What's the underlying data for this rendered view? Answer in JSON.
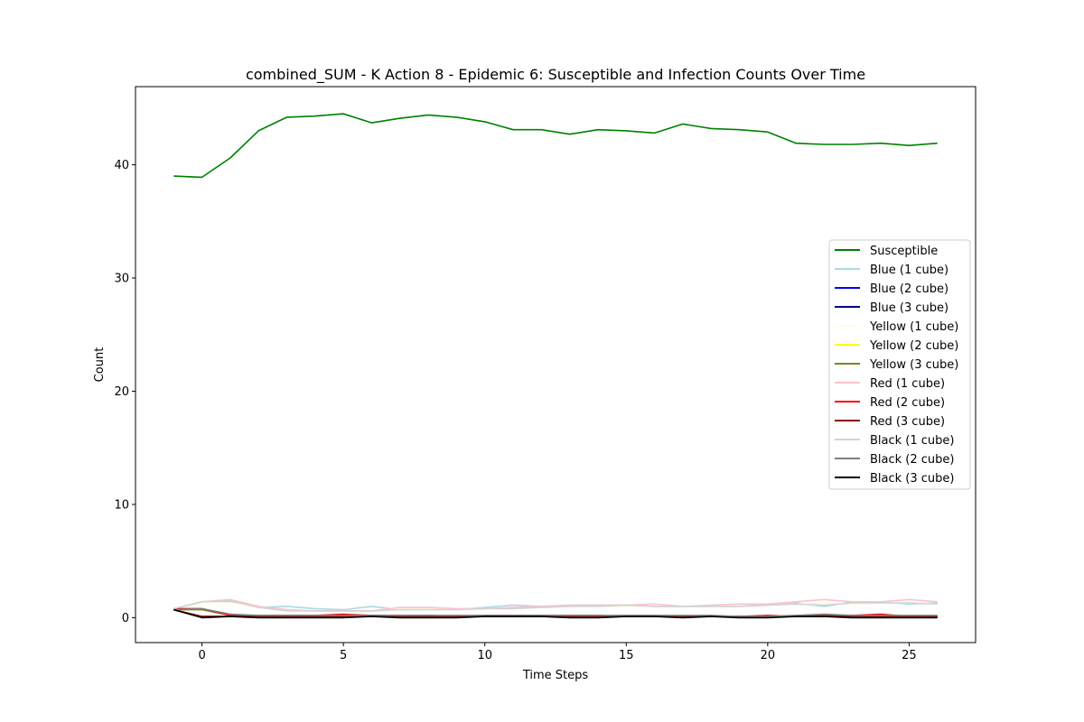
{
  "chart_data": {
    "type": "line",
    "title": "combined_SUM - K Action 8 - Epidemic 6: Susceptible and Infection Counts Over Time",
    "xlabel": "Time Steps",
    "ylabel": "Count",
    "xlim": [
      -2.35,
      27.35
    ],
    "ylim": [
      -2.2,
      46.9
    ],
    "xticks": [
      0,
      5,
      10,
      15,
      20,
      25
    ],
    "yticks": [
      0,
      10,
      20,
      30,
      40
    ],
    "grid": false,
    "legend_position": "center-right",
    "x": [
      -1,
      0,
      1,
      2,
      3,
      4,
      5,
      6,
      7,
      8,
      9,
      10,
      11,
      12,
      13,
      14,
      15,
      16,
      17,
      18,
      19,
      20,
      21,
      22,
      23,
      24,
      25,
      26
    ],
    "series": [
      {
        "name": "Susceptible",
        "color": "#008000",
        "values": [
          39.0,
          38.9,
          40.6,
          43.0,
          44.2,
          44.3,
          44.5,
          43.7,
          44.1,
          44.4,
          44.2,
          43.8,
          43.1,
          43.1,
          42.7,
          43.1,
          43.0,
          42.8,
          43.6,
          43.2,
          43.1,
          42.9,
          41.9,
          41.8,
          41.8,
          41.9,
          41.7,
          41.9
        ]
      },
      {
        "name": "Blue (1 cube)",
        "color": "#add8e6",
        "values": [
          0.8,
          1.3,
          1.4,
          0.9,
          1.0,
          0.8,
          0.7,
          1.0,
          0.7,
          0.8,
          0.7,
          0.9,
          1.1,
          1.0,
          1.1,
          1.1,
          1.1,
          1.0,
          1.0,
          1.0,
          1.0,
          1.2,
          1.3,
          1.0,
          1.4,
          1.4,
          1.2,
          1.3
        ]
      },
      {
        "name": "Blue (2 cube)",
        "color": "#0000ff",
        "values": [
          0.7,
          0.1,
          0.1,
          0.1,
          0.1,
          0.1,
          0.1,
          0.2,
          0.1,
          0.2,
          0.1,
          0.1,
          0.1,
          0.1,
          0.1,
          0.1,
          0.1,
          0.1,
          0.1,
          0.1,
          0.1,
          0.1,
          0.1,
          0.1,
          0.1,
          0.1,
          0.1,
          0.1
        ]
      },
      {
        "name": "Blue (3 cube)",
        "color": "#00008b",
        "values": [
          0.7,
          0.1,
          0.1,
          0.1,
          0.1,
          0.1,
          0.1,
          0.1,
          0.1,
          0.1,
          0.1,
          0.1,
          0.1,
          0.1,
          0.1,
          0.1,
          0.1,
          0.1,
          0.1,
          0.1,
          0.1,
          0.1,
          0.1,
          0.1,
          0.1,
          0.1,
          0.1,
          0.1
        ]
      },
      {
        "name": "Yellow (1 cube)",
        "color": "#ffffe0",
        "values": [
          0.8,
          1.3,
          1.3,
          0.9,
          0.7,
          0.6,
          0.6,
          0.7,
          0.8,
          0.8,
          0.7,
          0.8,
          0.8,
          0.9,
          1.0,
          1.0,
          1.0,
          1.1,
          1.0,
          1.0,
          1.0,
          1.1,
          1.2,
          1.3,
          1.2,
          1.3,
          1.3,
          1.2
        ]
      },
      {
        "name": "Yellow (2 cube)",
        "color": "#ffff00",
        "values": [
          0.7,
          0.1,
          0.1,
          0.1,
          0.1,
          0.1,
          0.1,
          0.1,
          0.1,
          0.1,
          0.1,
          0.1,
          0.1,
          0.1,
          0.1,
          0.1,
          0.1,
          0.1,
          0.1,
          0.1,
          0.1,
          0.1,
          0.1,
          0.1,
          0.1,
          0.1,
          0.1,
          0.1
        ]
      },
      {
        "name": "Yellow (3 cube)",
        "color": "#6b8e23",
        "values": [
          0.7,
          0.7,
          0.2,
          0.1,
          0.1,
          0.1,
          0.1,
          0.1,
          0.1,
          0.1,
          0.1,
          0.1,
          0.1,
          0.1,
          0.1,
          0.1,
          0.1,
          0.1,
          0.1,
          0.1,
          0.1,
          0.1,
          0.1,
          0.1,
          0.1,
          0.1,
          0.1,
          0.1
        ]
      },
      {
        "name": "Red (1 cube)",
        "color": "#ffc0cb",
        "values": [
          0.8,
          1.4,
          1.6,
          1.0,
          0.7,
          0.6,
          0.6,
          0.6,
          0.9,
          0.9,
          0.8,
          0.8,
          0.9,
          1.0,
          1.1,
          1.1,
          1.1,
          1.2,
          1.0,
          1.1,
          1.2,
          1.2,
          1.4,
          1.6,
          1.4,
          1.4,
          1.6,
          1.4
        ]
      },
      {
        "name": "Red (2 cube)",
        "color": "#ff0000",
        "values": [
          0.8,
          0.8,
          0.2,
          0.2,
          0.2,
          0.2,
          0.3,
          0.2,
          0.2,
          0.2,
          0.1,
          0.2,
          0.2,
          0.2,
          0.2,
          0.2,
          0.1,
          0.1,
          0.1,
          0.1,
          0.1,
          0.2,
          0.1,
          0.2,
          0.2,
          0.3,
          0.1,
          0.1
        ]
      },
      {
        "name": "Red (3 cube)",
        "color": "#8b0000",
        "values": [
          0.7,
          0.1,
          0.1,
          0.1,
          0.1,
          0.1,
          0.1,
          0.1,
          0.1,
          0.1,
          0.1,
          0.1,
          0.1,
          0.1,
          0.1,
          0.1,
          0.1,
          0.1,
          0.1,
          0.1,
          0.1,
          0.1,
          0.1,
          0.1,
          0.1,
          0.1,
          0.1,
          0.1
        ]
      },
      {
        "name": "Black (1 cube)",
        "color": "#d3d3d3",
        "values": [
          0.8,
          1.4,
          1.5,
          0.9,
          0.6,
          0.6,
          0.6,
          0.6,
          0.7,
          0.7,
          0.7,
          0.8,
          0.8,
          0.9,
          1.0,
          1.0,
          1.1,
          1.0,
          1.0,
          1.0,
          1.0,
          1.1,
          1.2,
          1.1,
          1.3,
          1.3,
          1.3,
          1.2
        ]
      },
      {
        "name": "Black (2 cube)",
        "color": "#808080",
        "values": [
          0.7,
          0.8,
          0.3,
          0.2,
          0.2,
          0.2,
          0.2,
          0.2,
          0.2,
          0.2,
          0.2,
          0.2,
          0.2,
          0.2,
          0.2,
          0.2,
          0.2,
          0.2,
          0.2,
          0.2,
          0.1,
          0.1,
          0.2,
          0.3,
          0.2,
          0.2,
          0.2,
          0.2
        ]
      },
      {
        "name": "Black (3 cube)",
        "color": "#000000",
        "values": [
          0.7,
          0.0,
          0.1,
          0.0,
          0.0,
          0.0,
          0.0,
          0.1,
          0.0,
          0.0,
          0.0,
          0.1,
          0.1,
          0.1,
          0.0,
          0.0,
          0.1,
          0.1,
          0.0,
          0.1,
          0.0,
          0.0,
          0.1,
          0.1,
          0.0,
          0.0,
          0.0,
          0.0
        ]
      }
    ]
  }
}
